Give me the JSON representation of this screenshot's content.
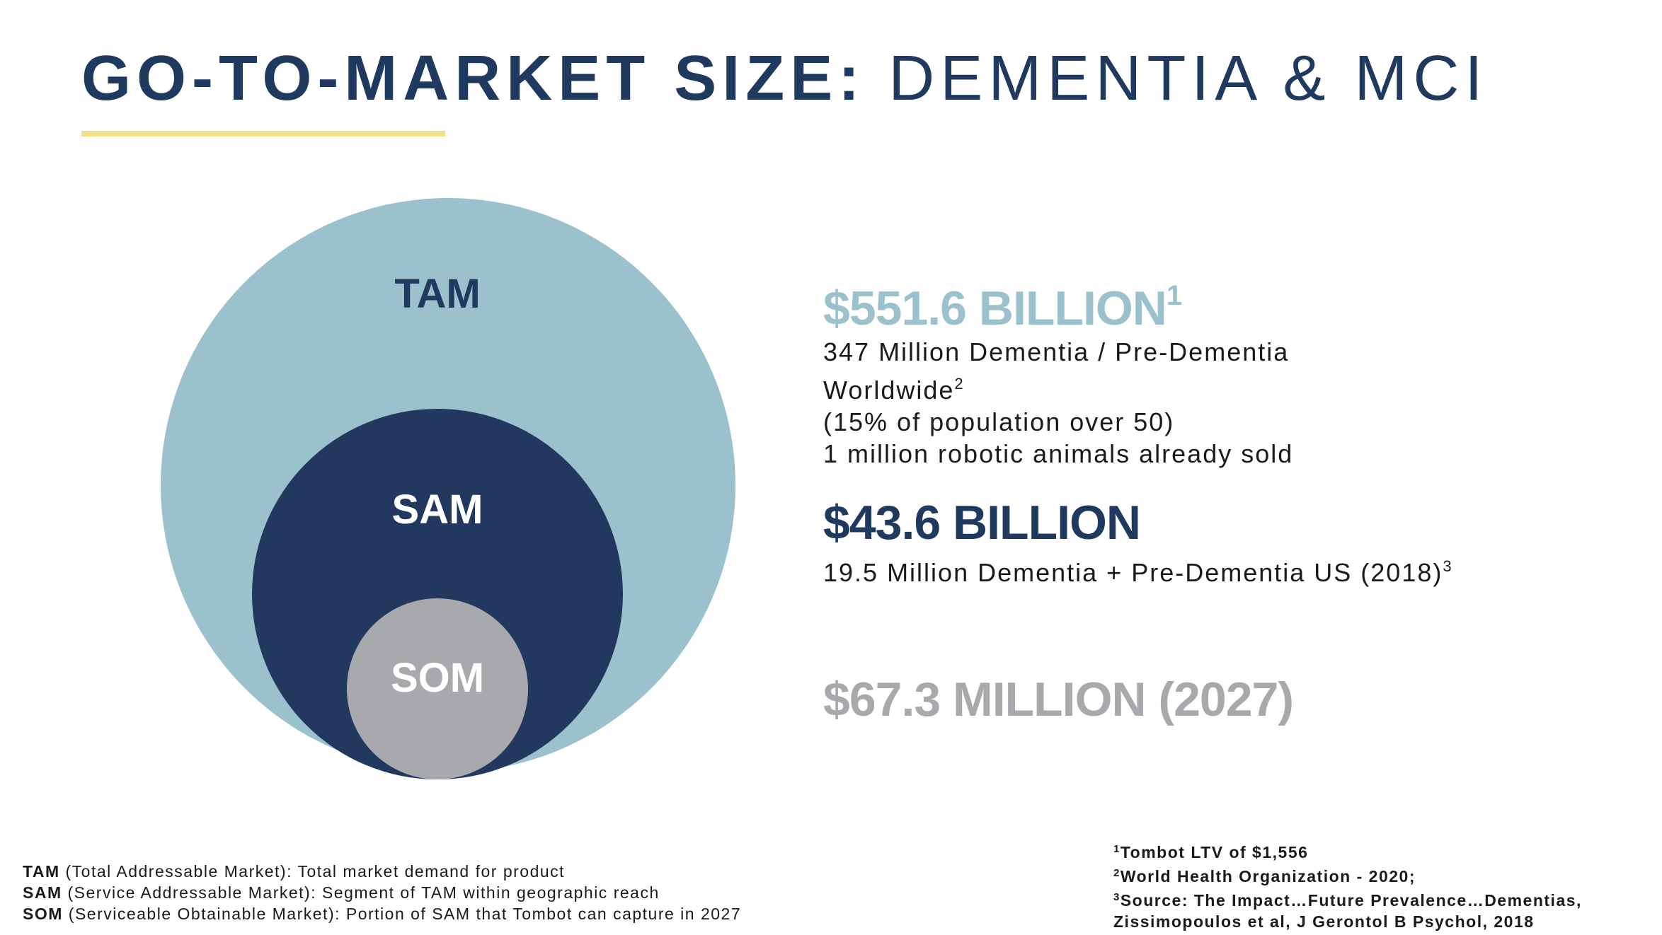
{
  "title": {
    "bold": "GO-TO-MARKET SIZE:",
    "light": "DEMENTIA & MCI"
  },
  "diagram": {
    "tam_label": "TAM",
    "sam_label": "SAM",
    "som_label": "SOM",
    "colors": {
      "tam": "#9ac1cc",
      "sam": "#22385e",
      "som": "#a7a9ac",
      "tam_text": "#203a5f",
      "inner_text": "#ffffff"
    }
  },
  "stats": {
    "tam": {
      "value": "$551.6 BILLION",
      "ref": "1",
      "lines": {
        "l1": "347 Million Dementia / Pre-Dementia",
        "l2": "Worldwide",
        "l2_ref": "2",
        "l3": "(15% of population over 50)",
        "l4": "1 million robotic animals already sold"
      }
    },
    "sam": {
      "value": "$43.6 BILLION",
      "line": "19.5 Million Dementia + Pre-Dementia US (2018)",
      "line_ref": "3"
    },
    "som": {
      "value": "$67.3 MILLION (2027)"
    }
  },
  "legend": {
    "tam_abbr": "TAM",
    "tam_text": " (Total Addressable Market): Total market demand for product",
    "sam_abbr": "SAM",
    "sam_text": " (Service Addressable Market): Segment of TAM within geographic reach",
    "som_abbr": "SOM",
    "som_text": " (Serviceable Obtainable Market): Portion of SAM that Tombot can capture in 2027"
  },
  "references": {
    "r1_num": "1",
    "r1": "Tombot LTV of $1,556",
    "r2_num": "2",
    "r2": "World Health Organization - 2020;",
    "r3_num": "3",
    "r3": "Source: The Impact…Future Prevalence…Dementias,",
    "r3b": "Zissimopoulos et al, J Gerontol B Psychol, 2018"
  }
}
